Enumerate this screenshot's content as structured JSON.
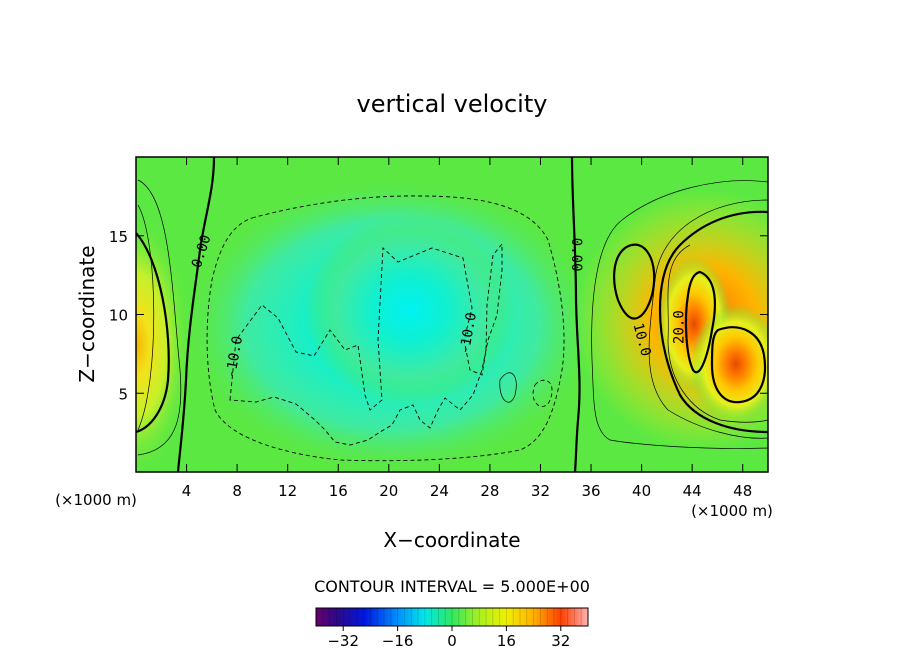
{
  "chart_data": {
    "type": "heatmap",
    "title": "vertical velocity",
    "xlabel": "X−coordinate",
    "ylabel": "Z−coordinate",
    "x_unit": "(×1000 m)",
    "xlim": [
      0,
      50
    ],
    "ylim": [
      0,
      20
    ],
    "x_ticks": [
      4,
      8,
      12,
      16,
      20,
      24,
      28,
      32,
      36,
      40,
      44,
      48
    ],
    "y_ticks": [
      5,
      10,
      15
    ],
    "contour_interval_label": "CONTOUR INTERVAL = 5.000E+00",
    "contour_interval": 5.0,
    "colorbar": {
      "range": [
        -40,
        40
      ],
      "ticks": [
        -32,
        -16,
        0,
        16,
        32
      ],
      "tick_labels": [
        "−32",
        "−16",
        "0",
        "16",
        "32"
      ]
    },
    "contour_labels": [
      {
        "text": "0.00",
        "x": 5.2,
        "z": 14.0,
        "angle": -72
      },
      {
        "text": "0.00",
        "x": 34.8,
        "z": 13.8,
        "angle": 90
      },
      {
        "text": "-10.0",
        "x": 7.8,
        "z": 7.3,
        "angle": -80
      },
      {
        "text": "-10.0",
        "x": 26.3,
        "z": 8.8,
        "angle": -80
      },
      {
        "text": "10.0",
        "x": 40.0,
        "z": 8.4,
        "angle": 75
      },
      {
        "text": "20.0",
        "x": 43.0,
        "z": 9.2,
        "angle": -90
      }
    ],
    "features": [
      {
        "type": "updraft",
        "x": 0.2,
        "z": 8.0,
        "peak": 12
      },
      {
        "type": "downdraft",
        "x": 21.5,
        "z": 10.0,
        "peak": -11
      },
      {
        "type": "updraft",
        "x": 44.0,
        "z": 9.5,
        "peak": 26
      },
      {
        "type": "updraft",
        "x": 47.5,
        "z": 6.5,
        "peak": 32
      }
    ]
  }
}
